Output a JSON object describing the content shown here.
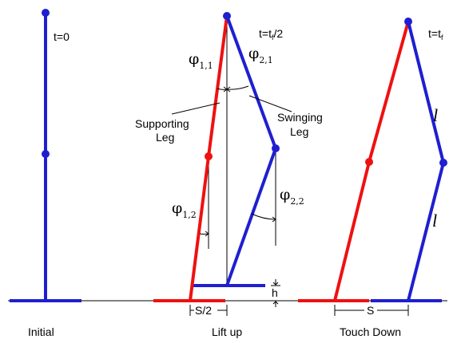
{
  "colors": {
    "leg_blue": "#1f1fd0",
    "leg_red": "#ee1111",
    "line_black": "#000000"
  },
  "stages": {
    "initial": {
      "time": "t=0",
      "caption": "Initial"
    },
    "liftup": {
      "time": "t=t",
      "time_sub": "f",
      "time_suffix": "/2",
      "caption": "Lift up",
      "phi_11_sub": "1,1",
      "phi_21_sub": "2,1",
      "phi_12_sub": "1,2",
      "phi_22_sub": "2,2",
      "supporting_line1": "Supporting",
      "supporting_line2": "Leg",
      "swinging_line1": "Swinging",
      "swinging_line2": "Leg",
      "half_step": "S/2",
      "height": "h"
    },
    "touchdown": {
      "time": "t=t",
      "time_sub": "f",
      "caption": "Touch Down",
      "step": "S",
      "length_upper": "l",
      "length_lower": "l"
    }
  },
  "symbols": {
    "phi": "φ"
  }
}
